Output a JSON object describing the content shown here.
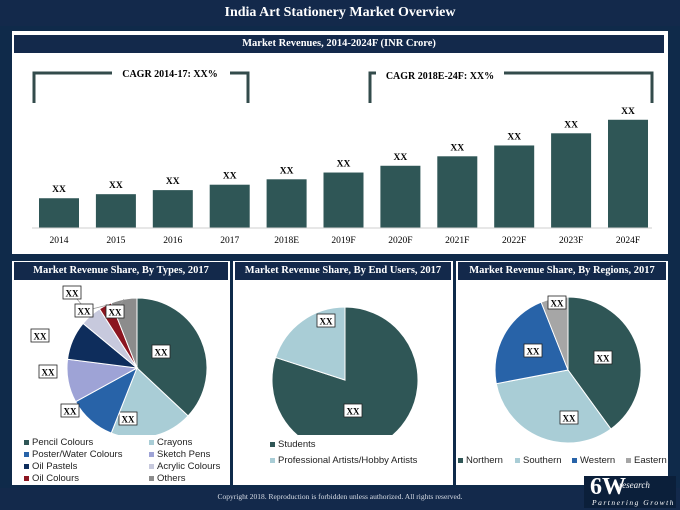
{
  "title": "India Art Stationery Market Overview",
  "footer": "Copyright 2018. Reproduction is forbidden unless authorized. All rights reserved.",
  "logo": {
    "big": "6W",
    "small": "research",
    "tag": "Partnering Growth"
  },
  "chart_data": [
    {
      "type": "bar",
      "title": "Market Revenues, 2014-2024F (INR Crore)",
      "annotations": [
        "CAGR 2014-17: XX%",
        "CAGR 2018E-24F: XX%"
      ],
      "categories": [
        "2014",
        "2015",
        "2016",
        "2017",
        "2018E",
        "2019F",
        "2020F",
        "2021F",
        "2022F",
        "2023F",
        "2024F"
      ],
      "values": [
        22,
        25,
        28,
        32,
        36,
        41,
        46,
        53,
        61,
        70,
        80
      ],
      "data_labels": [
        "XX",
        "XX",
        "XX",
        "XX",
        "XX",
        "XX",
        "XX",
        "XX",
        "XX",
        "XX",
        "XX"
      ],
      "color": "#2f5656",
      "ylim": [
        0,
        85
      ]
    },
    {
      "type": "pie",
      "title": "Market Revenue Share, By Types, 2017",
      "labels": [
        "Pencil Colours",
        "Crayons",
        "Poster/Water Colours",
        "Sketch Pens",
        "Oil Pastels",
        "Acrylic Colours",
        "Oil Colours",
        "Others"
      ],
      "values": [
        37,
        19,
        11,
        10,
        9,
        5,
        3,
        6
      ],
      "colors": [
        "#2f5656",
        "#a9cdd6",
        "#2863a8",
        "#9ea3d6",
        "#0e2d5c",
        "#c7c9dd",
        "#8b1520",
        "#8c8c8c"
      ],
      "data_labels": [
        "XX",
        "XX",
        "XX",
        "XX",
        "XX",
        "XX",
        "XX",
        "XX"
      ]
    },
    {
      "type": "pie",
      "title": "Market Revenue Share, By End Users, 2017",
      "labels": [
        "Students",
        "Professional Artists/Hobby Artists"
      ],
      "values": [
        80,
        20
      ],
      "colors": [
        "#2f5656",
        "#a9cdd6"
      ],
      "data_labels": [
        "XX",
        "XX"
      ]
    },
    {
      "type": "pie",
      "title": "Market Revenue Share, By Regions, 2017",
      "labels": [
        "Northern",
        "Southern",
        "Western",
        "Eastern"
      ],
      "values": [
        40,
        32,
        22,
        6
      ],
      "colors": [
        "#2f5656",
        "#a9cdd6",
        "#2863a8",
        "#a6a6a6"
      ],
      "data_labels": [
        "XX",
        "XX",
        "XX",
        "XX"
      ]
    }
  ]
}
